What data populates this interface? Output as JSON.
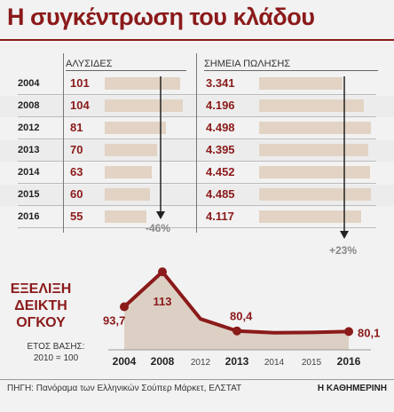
{
  "title": "Η συγκέντρωση του κλάδου",
  "table": {
    "col1_header": "ΑΛΥΣΙΔΕΣ",
    "col2_header": "ΣΗΜΕΙΑ ΠΩΛΗΣΗΣ",
    "rows": [
      {
        "year": "2004",
        "chains": "101",
        "chains_value": 101,
        "points": "3.341",
        "points_value": 3341
      },
      {
        "year": "2008",
        "chains": "104",
        "chains_value": 104,
        "points": "4.196",
        "points_value": 4196
      },
      {
        "year": "2012",
        "chains": "81",
        "chains_value": 81,
        "points": "4.498",
        "points_value": 4498
      },
      {
        "year": "2013",
        "chains": "70",
        "chains_value": 70,
        "points": "4.395",
        "points_value": 4395
      },
      {
        "year": "2014",
        "chains": "63",
        "chains_value": 63,
        "points": "4.452",
        "points_value": 4452
      },
      {
        "year": "2015",
        "chains": "60",
        "chains_value": 60,
        "points": "4.485",
        "points_value": 4485
      },
      {
        "year": "2016",
        "chains": "55",
        "chains_value": 55,
        "points": "4.117",
        "points_value": 4117
      }
    ],
    "chains_change": "-46%",
    "points_change": "+23%"
  },
  "index": {
    "title_lines": [
      "ΕΞΕΛΙΞΗ",
      "ΔΕΙΚΤΗ",
      "ΟΓΚΟΥ"
    ],
    "base_line1": "ΕΤΟΣ ΒΑΣΗΣ:",
    "base_line2": "2010 = 100"
  },
  "chart_data": [
    {
      "type": "bar",
      "categories": [
        "2004",
        "2008",
        "2012",
        "2013",
        "2014",
        "2015",
        "2016"
      ],
      "series": [
        {
          "name": "ΑΛΥΣΙΔΕΣ",
          "values": [
            101,
            104,
            81,
            70,
            63,
            60,
            55
          ]
        }
      ],
      "annotations": [
        "-46%"
      ]
    },
    {
      "type": "bar",
      "categories": [
        "2004",
        "2008",
        "2012",
        "2013",
        "2014",
        "2015",
        "2016"
      ],
      "series": [
        {
          "name": "ΣΗΜΕΙΑ ΠΩΛΗΣΗΣ",
          "values": [
            3341,
            4196,
            4498,
            4395,
            4452,
            4485,
            4117
          ]
        }
      ],
      "annotations": [
        "+23%"
      ]
    },
    {
      "type": "area",
      "title": "ΕΞΕΛΙΞΗ ΔΕΙΚΤΗ ΟΓΚΟΥ",
      "x": [
        "2004",
        "2008",
        "2012",
        "2013",
        "2014",
        "2015",
        "2016"
      ],
      "values": [
        93.7,
        113,
        87,
        80.4,
        79.4,
        79.6,
        80.1
      ],
      "labels": [
        {
          "x": "2004",
          "text": "93,7"
        },
        {
          "x": "2008",
          "text": "113"
        },
        {
          "x": "2013",
          "text": "80,4"
        },
        {
          "x": "2016",
          "text": "80,1"
        }
      ],
      "highlight_years": [
        "2004",
        "2008",
        "2013",
        "2016"
      ]
    }
  ],
  "footer": {
    "source": "ΠΗΓΗ: Πανόραμα των Ελληνικών Σούπερ Μάρκετ, ΕΛΣΤΑΤ",
    "brand": "Η ΚΑΘΗΜΕΡΙΝΗ"
  },
  "colors": {
    "accent": "#8b1a1a",
    "bar": "#e2d3c4",
    "area": "#dcd0c4"
  }
}
